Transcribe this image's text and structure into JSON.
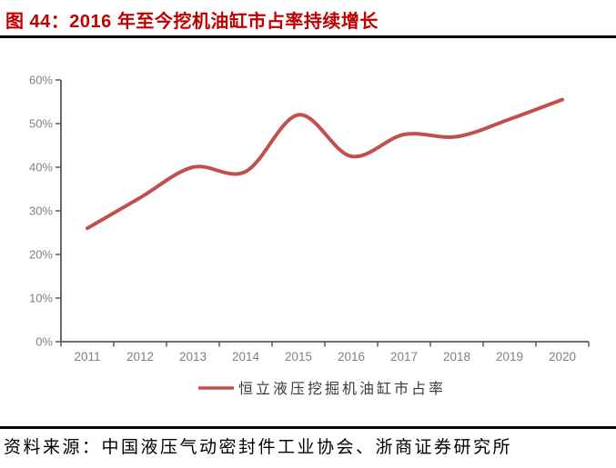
{
  "figure": {
    "title": "图 44：2016 年至今挖机油缸市占率持续增长",
    "source": "资料来源：中国液压气动密封件工业协会、浙商证券研究所"
  },
  "colors": {
    "title_red": "#C00000",
    "line": "#C0504D",
    "axis": "#595959",
    "tick_label": "#808080",
    "separator": "#000000"
  },
  "chart_data": {
    "type": "line",
    "title": "",
    "xlabel": "",
    "ylabel": "",
    "categories": [
      "2011",
      "2012",
      "2013",
      "2014",
      "2015",
      "2016",
      "2017",
      "2018",
      "2019",
      "2020"
    ],
    "series": [
      {
        "name": "恒立液压挖掘机油缸市占率",
        "values": [
          26,
          33,
          40,
          39,
          52,
          42.5,
          47.5,
          47,
          51,
          55.5
        ]
      }
    ],
    "ylim": [
      0,
      60
    ],
    "y_ticks": [
      "0%",
      "10%",
      "20%",
      "30%",
      "40%",
      "50%",
      "60%"
    ],
    "grid": false,
    "smooth": true,
    "legend_position": "bottom"
  }
}
